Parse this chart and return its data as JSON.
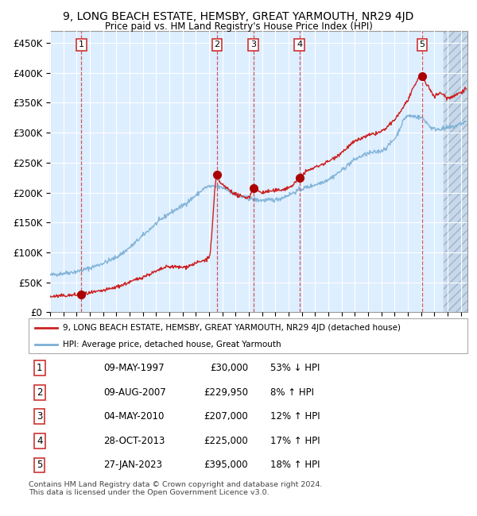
{
  "title": "9, LONG BEACH ESTATE, HEMSBY, GREAT YARMOUTH, NR29 4JD",
  "subtitle": "Price paid vs. HM Land Registry's House Price Index (HPI)",
  "xlim_start": 1995.0,
  "xlim_end": 2026.5,
  "ylim": [
    0,
    470000
  ],
  "yticks": [
    0,
    50000,
    100000,
    150000,
    200000,
    250000,
    300000,
    350000,
    400000,
    450000
  ],
  "ytick_labels": [
    "£0",
    "£50K",
    "£100K",
    "£150K",
    "£200K",
    "£250K",
    "£300K",
    "£350K",
    "£400K",
    "£450K"
  ],
  "sale_dates_num": [
    1997.356,
    2007.607,
    2010.336,
    2013.826,
    2023.073
  ],
  "sale_prices": [
    30000,
    229950,
    207000,
    225000,
    395000
  ],
  "sale_labels": [
    "1",
    "2",
    "3",
    "4",
    "5"
  ],
  "hpi_color": "#7bafd4",
  "price_color": "#cc2222",
  "marker_color": "#aa0000",
  "bg_color": "#ddeeff",
  "grid_color": "#ffffff",
  "legend_label_price": "9, LONG BEACH ESTATE, HEMSBY, GREAT YARMOUTH, NR29 4JD (detached house)",
  "legend_label_hpi": "HPI: Average price, detached house, Great Yarmouth",
  "table_rows": [
    [
      "1",
      "09-MAY-1997",
      "£30,000",
      "53% ↓ HPI"
    ],
    [
      "2",
      "09-AUG-2007",
      "£229,950",
      "8% ↑ HPI"
    ],
    [
      "3",
      "04-MAY-2010",
      "£207,000",
      "12% ↑ HPI"
    ],
    [
      "4",
      "28-OCT-2013",
      "£225,000",
      "17% ↑ HPI"
    ],
    [
      "5",
      "27-JAN-2023",
      "£395,000",
      "18% ↑ HPI"
    ]
  ],
  "footer": "Contains HM Land Registry data © Crown copyright and database right 2024.\nThis data is licensed under the Open Government Licence v3.0.",
  "hatch_start": 2024.7
}
